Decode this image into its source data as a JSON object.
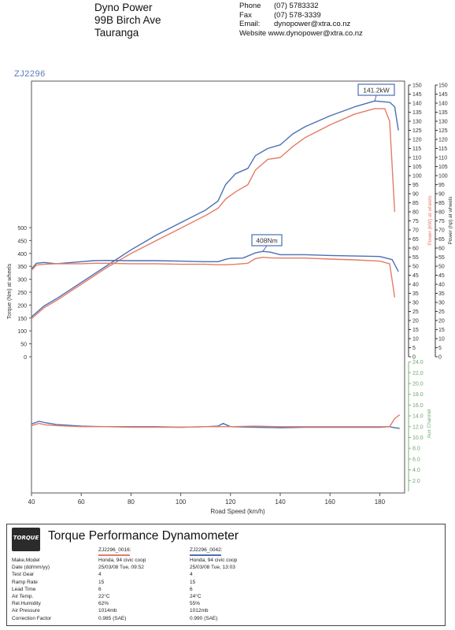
{
  "header": {
    "company": "Dyno Power",
    "address1": "99B Birch Ave",
    "address2": "Tauranga",
    "phone_label": "Phone",
    "phone": "(07) 5783332",
    "fax_label": "Fax",
    "fax": "(07) 578-3339",
    "email_label": "Email:",
    "email": "dynopower@xtra.co.nz",
    "website_label": "Website",
    "website": "www.dynopower@xtra.co.nz"
  },
  "run_id": "ZJ2296",
  "chart_data": {
    "type": "line",
    "xlabel": "Road Speed (km/h)",
    "x_ticks": [
      40,
      60,
      80,
      100,
      120,
      140,
      160,
      180
    ],
    "xlim": [
      40,
      190
    ],
    "torque_axis": {
      "label": "Torque (Nm) at wheels",
      "ticks": [
        0,
        50,
        100,
        150,
        200,
        250,
        300,
        350,
        400,
        450,
        500
      ],
      "ylim": [
        0,
        500
      ]
    },
    "power_wheels_axis": {
      "label": "Power (kW) at wheels",
      "ticks": [
        0,
        5,
        10,
        15,
        20,
        25,
        30,
        35,
        40,
        45,
        50,
        55,
        60,
        65,
        70,
        75,
        80,
        85,
        90,
        95,
        100,
        105,
        110,
        115,
        120,
        125,
        130,
        135,
        140,
        145,
        150
      ],
      "ylim": [
        0,
        150
      ]
    },
    "power_flywheel_axis": {
      "label": "Power (hp) at wheels",
      "ticks": [
        0,
        5,
        10,
        15,
        20,
        25,
        30,
        35,
        40,
        45,
        50,
        55,
        60,
        65,
        70,
        75,
        80,
        85,
        90,
        95,
        100,
        105,
        110,
        115,
        120,
        125,
        130,
        135,
        140,
        145,
        150
      ],
      "ylim": [
        0,
        150
      ]
    },
    "aux_axis": {
      "label": "Aux Channel",
      "ticks": [
        2.0,
        4.0,
        6.0,
        8.0,
        10.0,
        12.0,
        14.0,
        16.0,
        18.0,
        20.0,
        22.0,
        24.0
      ],
      "ylim": [
        0,
        24
      ]
    },
    "annotations": [
      {
        "text": "141.2kW",
        "x": 178,
        "series": "power_blue"
      },
      {
        "text": "408Nm",
        "x": 133,
        "series": "torque_blue"
      }
    ],
    "series": [
      {
        "name": "ZJ2296_0042",
        "quantity": "power",
        "axis": "kW",
        "color": "#4a6fb5",
        "x": [
          40,
          45,
          50,
          60,
          70,
          80,
          90,
          100,
          110,
          115,
          118,
          122,
          127,
          130,
          135,
          140,
          145,
          150,
          160,
          170,
          178,
          184,
          186,
          187.5
        ],
        "values": [
          22,
          28,
          32,
          41,
          50,
          59,
          67,
          74,
          81,
          86,
          95,
          101,
          104,
          111,
          115,
          117,
          123,
          127,
          133,
          138,
          141.2,
          140.5,
          138,
          125
        ]
      },
      {
        "name": "ZJ2296_0016",
        "quantity": "power",
        "axis": "kW",
        "color": "#e47c66",
        "x": [
          40,
          45,
          50,
          60,
          70,
          80,
          90,
          100,
          110,
          115,
          118,
          122,
          127,
          130,
          135,
          140,
          145,
          150,
          160,
          170,
          178,
          182,
          184,
          186
        ],
        "values": [
          21,
          27,
          31,
          40,
          49,
          57,
          64,
          71,
          78,
          82,
          87,
          91,
          95,
          103,
          109,
          110,
          116,
          121,
          128,
          134,
          137,
          137,
          130,
          80
        ]
      },
      {
        "name": "ZJ2296_0042",
        "quantity": "torque",
        "axis": "Nm",
        "color": "#4a6fb5",
        "x": [
          40,
          42,
          45,
          50,
          60,
          65,
          70,
          80,
          90,
          100,
          110,
          115,
          118,
          120,
          125,
          130,
          133,
          136,
          140,
          150,
          160,
          170,
          180,
          185,
          187.5
        ],
        "values": [
          340,
          362,
          365,
          360,
          368,
          372,
          373,
          372,
          372,
          370,
          368,
          368,
          377,
          381,
          382,
          402,
          408,
          405,
          395,
          395,
          392,
          390,
          388,
          376,
          330
        ]
      },
      {
        "name": "ZJ2296_0016",
        "quantity": "torque",
        "axis": "Nm",
        "color": "#e47c66",
        "x": [
          40,
          42,
          45,
          50,
          60,
          65,
          70,
          80,
          90,
          100,
          110,
          115,
          118,
          122,
          127,
          130,
          133,
          136,
          140,
          150,
          160,
          170,
          180,
          184,
          186
        ],
        "values": [
          335,
          355,
          358,
          360,
          360,
          362,
          362,
          360,
          360,
          358,
          358,
          356,
          356,
          358,
          362,
          380,
          385,
          383,
          382,
          382,
          378,
          375,
          370,
          360,
          230
        ]
      },
      {
        "name": "ZJ2296_0042",
        "quantity": "aux",
        "axis": "aux",
        "color": "#4a6fb5",
        "x": [
          40,
          43,
          46,
          50,
          60,
          70,
          80,
          90,
          100,
          110,
          115,
          117,
          120,
          130,
          140,
          150,
          160,
          170,
          180,
          184,
          186,
          188
        ],
        "values": [
          12.5,
          13.0,
          12.7,
          12.4,
          12.1,
          12.0,
          12.0,
          12.0,
          11.9,
          12.0,
          12.1,
          12.6,
          12.0,
          11.9,
          11.8,
          11.9,
          11.9,
          11.9,
          11.9,
          12.0,
          11.8,
          11.7
        ]
      },
      {
        "name": "ZJ2296_0016",
        "quantity": "aux",
        "axis": "aux",
        "color": "#e47c66",
        "x": [
          40,
          43,
          46,
          50,
          60,
          70,
          80,
          90,
          100,
          110,
          115,
          120,
          130,
          140,
          150,
          160,
          170,
          180,
          184,
          186,
          188
        ],
        "values": [
          12.2,
          12.6,
          12.3,
          12.2,
          12.0,
          12.0,
          11.9,
          11.9,
          11.9,
          12.0,
          12.0,
          12.0,
          12.1,
          12.0,
          12.0,
          12.0,
          12.0,
          12.0,
          12.0,
          13.5,
          14.2
        ]
      }
    ]
  },
  "footer": {
    "logo_text": "TORQUE",
    "title": "Torque Performance Dynamometer",
    "run1": "ZJ2296_0016:",
    "run2": "ZJ2296_0042:",
    "run1_color": "#e47c66",
    "run2_color": "#4a6fb5",
    "rows": [
      {
        "k": "Make,Model",
        "v1": "Honda, 94 civic coop",
        "v2": "Honda, 94 civic coop"
      },
      {
        "k": "Date (dd/mm/yy)",
        "v1": "25/03/08 Tue, 09:52",
        "v2": "25/03/08 Tue, 13:03"
      },
      {
        "k": "Test Gear",
        "v1": "4",
        "v2": "4"
      },
      {
        "k": "Ramp Rate",
        "v1": "15",
        "v2": "15"
      },
      {
        "k": "Lead Time",
        "v1": "6",
        "v2": "6"
      },
      {
        "k": "Air Temp.",
        "v1": "22°C",
        "v2": "24°C"
      },
      {
        "k": "Rel.Humidity",
        "v1": "62%",
        "v2": "55%"
      },
      {
        "k": "Air Pressure",
        "v1": "1014mb",
        "v2": "1012mb"
      },
      {
        "k": "Correction Factor",
        "v1": "0.985 (SAE)",
        "v2": "0.990 (SAE)"
      }
    ]
  }
}
